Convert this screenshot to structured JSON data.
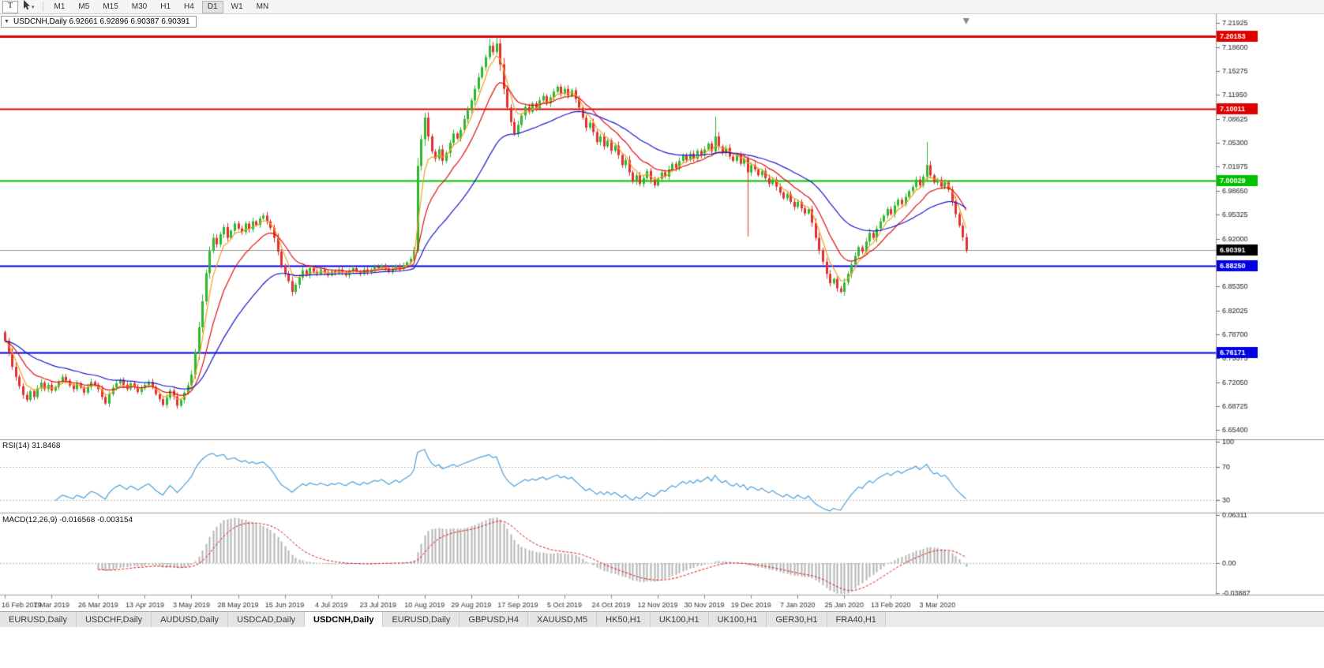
{
  "toolbar": {
    "t_label": "T",
    "timeframes": [
      "M1",
      "M5",
      "M15",
      "M30",
      "H1",
      "H4",
      "D1",
      "W1",
      "MN"
    ],
    "active_timeframe": "D1"
  },
  "icons": {
    "chevron_down": "▾",
    "collapse_arrow": "▼"
  },
  "chart_header": {
    "text": "USDCNH,Daily  6.92661 6.92896 6.90387 6.90391"
  },
  "indicators": {
    "rsi_label": "RSI(14) 31.8468",
    "macd_label": "MACD(12,26,9) -0.016568 -0.003154"
  },
  "tabs": [
    "EURUSD,Daily",
    "USDCHF,Daily",
    "AUDUSD,Daily",
    "USDCAD,Daily",
    "USDCNH,Daily",
    "EURUSD,Daily",
    "GBPUSD,H4",
    "XAUUSD,M5",
    "HK50,H1",
    "UK100,H1",
    "UK100,H1",
    "GER30,H1",
    "FRA40,H1"
  ],
  "active_tab_index": 4,
  "chart_data": {
    "type": "candlestick",
    "symbol": "USDCNH",
    "period": "Daily",
    "ohlc": {
      "open": "6.92661",
      "high": "6.92896",
      "low": "6.90387",
      "close": "6.90391"
    },
    "x_labels": [
      "16 Feb 2019",
      "7 Mar 2019",
      "26 Mar 2019",
      "13 Apr 2019",
      "3 May 2019",
      "28 May 2019",
      "15 Jun 2019",
      "4 Jul 2019",
      "23 Jul 2019",
      "10 Aug 2019",
      "29 Aug 2019",
      "17 Sep 2019",
      "5 Oct 2019",
      "24 Oct 2019",
      "12 Nov 2019",
      "30 Nov 2019",
      "19 Dec 2019",
      "7 Jan 2020",
      "25 Jan 2020",
      "13 Feb 2020",
      "3 Mar 2020"
    ],
    "x_label_step_bars": 13,
    "y_ticks": [
      "7.21925",
      "7.18600",
      "7.15275",
      "7.11950",
      "7.08625",
      "7.05300",
      "7.01975",
      "6.98650",
      "6.95325",
      "6.92000",
      "6.88675",
      "6.85350",
      "6.82025",
      "6.78700",
      "6.75375",
      "6.72050",
      "6.68725",
      "6.65400"
    ],
    "price_range": {
      "top": 7.2295,
      "bottom": 6.6435
    },
    "first_open": 6.79,
    "closes": [
      6.778,
      6.762,
      6.742,
      6.728,
      6.715,
      6.703,
      6.696,
      6.708,
      6.7,
      6.712,
      6.72,
      6.711,
      6.717,
      6.709,
      6.714,
      6.721,
      6.728,
      6.723,
      6.716,
      6.711,
      6.719,
      6.713,
      6.706,
      6.714,
      6.721,
      6.717,
      6.711,
      6.7,
      6.691,
      6.704,
      6.713,
      6.719,
      6.724,
      6.717,
      6.711,
      6.719,
      6.714,
      6.707,
      6.712,
      6.717,
      6.721,
      6.714,
      6.704,
      6.697,
      6.689,
      6.699,
      6.709,
      6.701,
      6.688,
      6.696,
      6.706,
      6.716,
      6.731,
      6.762,
      6.797,
      6.833,
      6.872,
      6.903,
      6.921,
      6.912,
      6.926,
      6.936,
      6.921,
      6.931,
      6.941,
      6.934,
      6.929,
      6.941,
      6.933,
      6.944,
      6.939,
      6.948,
      6.952,
      6.944,
      6.935,
      6.921,
      6.902,
      6.882,
      6.871,
      6.861,
      6.846,
      6.856,
      6.866,
      6.876,
      6.869,
      6.879,
      6.874,
      6.871,
      6.877,
      6.873,
      6.869,
      6.875,
      6.872,
      6.877,
      6.873,
      6.869,
      6.875,
      6.879,
      6.874,
      6.871,
      6.877,
      6.873,
      6.877,
      6.881,
      6.879,
      6.883,
      6.879,
      6.874,
      6.878,
      6.882,
      6.878,
      6.883,
      6.887,
      6.892,
      6.904,
      7.021,
      7.058,
      7.088,
      7.062,
      7.041,
      7.031,
      7.044,
      7.028,
      7.039,
      7.053,
      7.066,
      7.059,
      7.071,
      7.086,
      7.098,
      7.112,
      7.128,
      7.144,
      7.158,
      7.172,
      7.188,
      7.179,
      7.191,
      7.162,
      7.128,
      7.102,
      7.082,
      7.066,
      7.078,
      7.091,
      7.103,
      7.096,
      7.108,
      7.101,
      7.112,
      7.118,
      7.108,
      7.116,
      7.124,
      7.131,
      7.121,
      7.128,
      7.119,
      7.126,
      7.114,
      7.102,
      7.088,
      7.074,
      7.081,
      7.068,
      7.054,
      7.062,
      7.048,
      7.056,
      7.042,
      7.049,
      7.036,
      7.022,
      7.029,
      7.012,
      6.999,
      7.008,
      6.996,
      7.004,
      7.014,
      7.002,
      6.994,
      7.003,
      7.012,
      7.006,
      7.016,
      7.024,
      7.018,
      7.028,
      7.036,
      7.029,
      7.038,
      7.031,
      7.042,
      7.036,
      7.044,
      7.052,
      7.041,
      7.062,
      7.048,
      7.039,
      7.046,
      7.034,
      7.028,
      7.036,
      7.024,
      7.031,
      7.012,
      7.022,
      7.016,
      7.008,
      7.014,
      7.004,
      6.996,
      7.002,
      6.992,
      6.984,
      6.976,
      6.982,
      6.971,
      6.964,
      6.971,
      6.962,
      6.955,
      6.961,
      6.942,
      6.921,
      6.904,
      6.888,
      6.871,
      6.858,
      6.864,
      6.851,
      6.846,
      6.859,
      6.871,
      6.884,
      6.896,
      6.908,
      6.902,
      6.916,
      6.928,
      6.921,
      6.934,
      6.944,
      6.952,
      6.961,
      6.954,
      6.966,
      6.974,
      6.968,
      6.978,
      6.986,
      6.992,
      7.002,
      6.994,
      7.006,
      7.022,
      7.008,
      6.998,
      7.002,
      6.992,
      6.998,
      6.988,
      6.972,
      6.954,
      6.938,
      6.922,
      6.904
    ],
    "wick_overrides": {
      "115": {
        "low": 6.9
      },
      "135": {
        "high": 7.1975
      },
      "137": {
        "high": 7.1998
      },
      "198": {
        "high": 7.089
      },
      "207": {
        "low": 6.923
      },
      "257": {
        "high": 7.054
      }
    },
    "candle_colors": {
      "up": "#2eb82e",
      "down": "#e03131"
    },
    "moving_averages": [
      {
        "name": "ma-fast",
        "period": 5,
        "color": "#f0a020"
      },
      {
        "name": "ma-mid",
        "period": 13,
        "color": "#e01010"
      },
      {
        "name": "ma-slow",
        "period": 34,
        "color": "#1a1ad0"
      }
    ],
    "levels": [
      {
        "value": 7.20153,
        "label": "7.20153",
        "color": "#e00000",
        "width": 3
      },
      {
        "value": 7.10011,
        "label": "7.10011",
        "color": "#e00000",
        "width": 2
      },
      {
        "value": 7.00029,
        "label": "7.00029",
        "color": "#00c000",
        "width": 2
      },
      {
        "value": 6.8825,
        "label": "6.88250",
        "color": "#0000e0",
        "width": 2
      },
      {
        "value": 6.76171,
        "label": "6.76171",
        "color": "#0000e0",
        "width": 2
      }
    ],
    "current_price": {
      "value": 6.90391,
      "label": "6.90391",
      "box_color": "#000000"
    },
    "rsi": {
      "period": 14,
      "display": "31.8468",
      "color": "#4f9fd8",
      "levels": [
        70,
        30
      ],
      "scale_labels": [
        "100",
        "70",
        "30"
      ]
    },
    "macd": {
      "fast": 12,
      "slow": 26,
      "signal": 9,
      "display": [
        "-0.016568",
        "-0.003154"
      ],
      "hist_color": "#b4b4b4",
      "signal_color": "#e01010",
      "scale_labels": [
        "0.06311",
        "0.00",
        "-0.03887"
      ],
      "scale_top": 0.0645,
      "scale_bottom": -0.04
    }
  }
}
